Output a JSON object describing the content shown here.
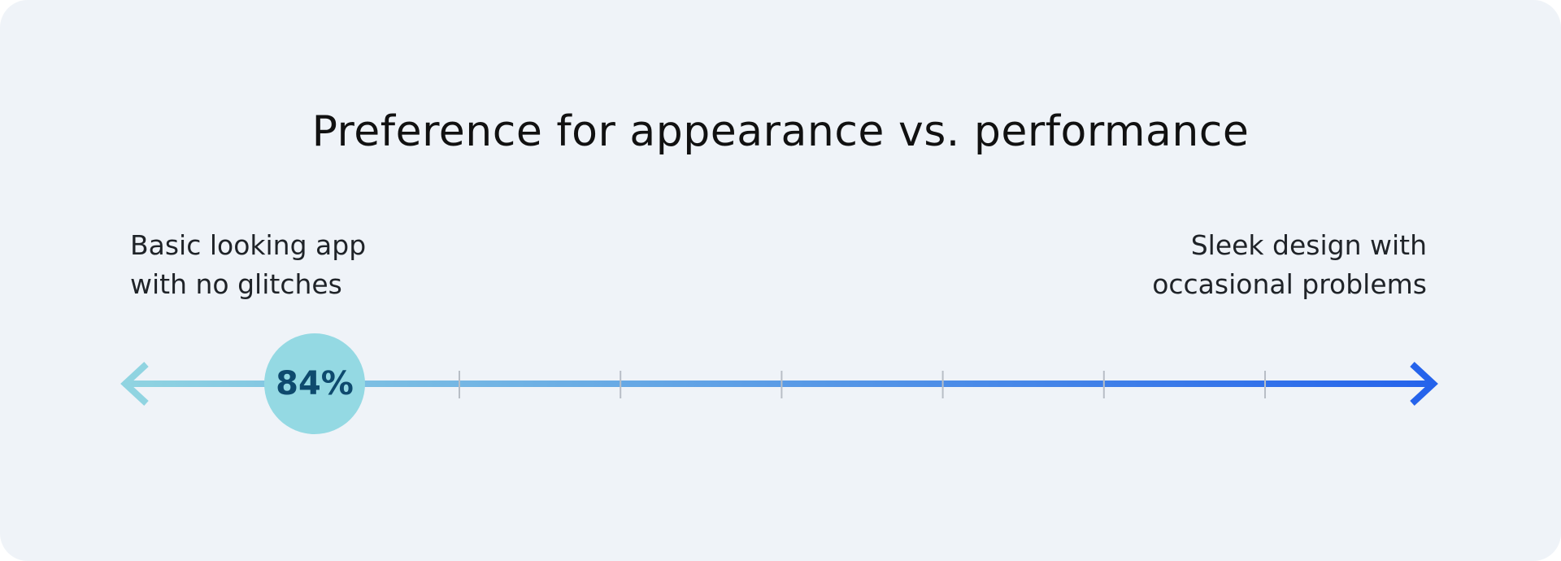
{
  "title": "Preference for appearance vs. performance",
  "left_label": {
    "line1": "Basic looking app",
    "line2": "with no glitches"
  },
  "right_label": {
    "line1": "Sleek design with",
    "line2": "occasional problems"
  },
  "marker": {
    "value_label": "84%",
    "value_percent": 84,
    "position_toward": "left"
  },
  "scale": {
    "tick_count": 6
  },
  "colors": {
    "background": "#eff3f8",
    "line_start": "#90d4e1",
    "line_end": "#2563eb",
    "marker_fill": "#94d9e3",
    "marker_text": "#0e4a6e",
    "tick": "#b8bec6"
  }
}
